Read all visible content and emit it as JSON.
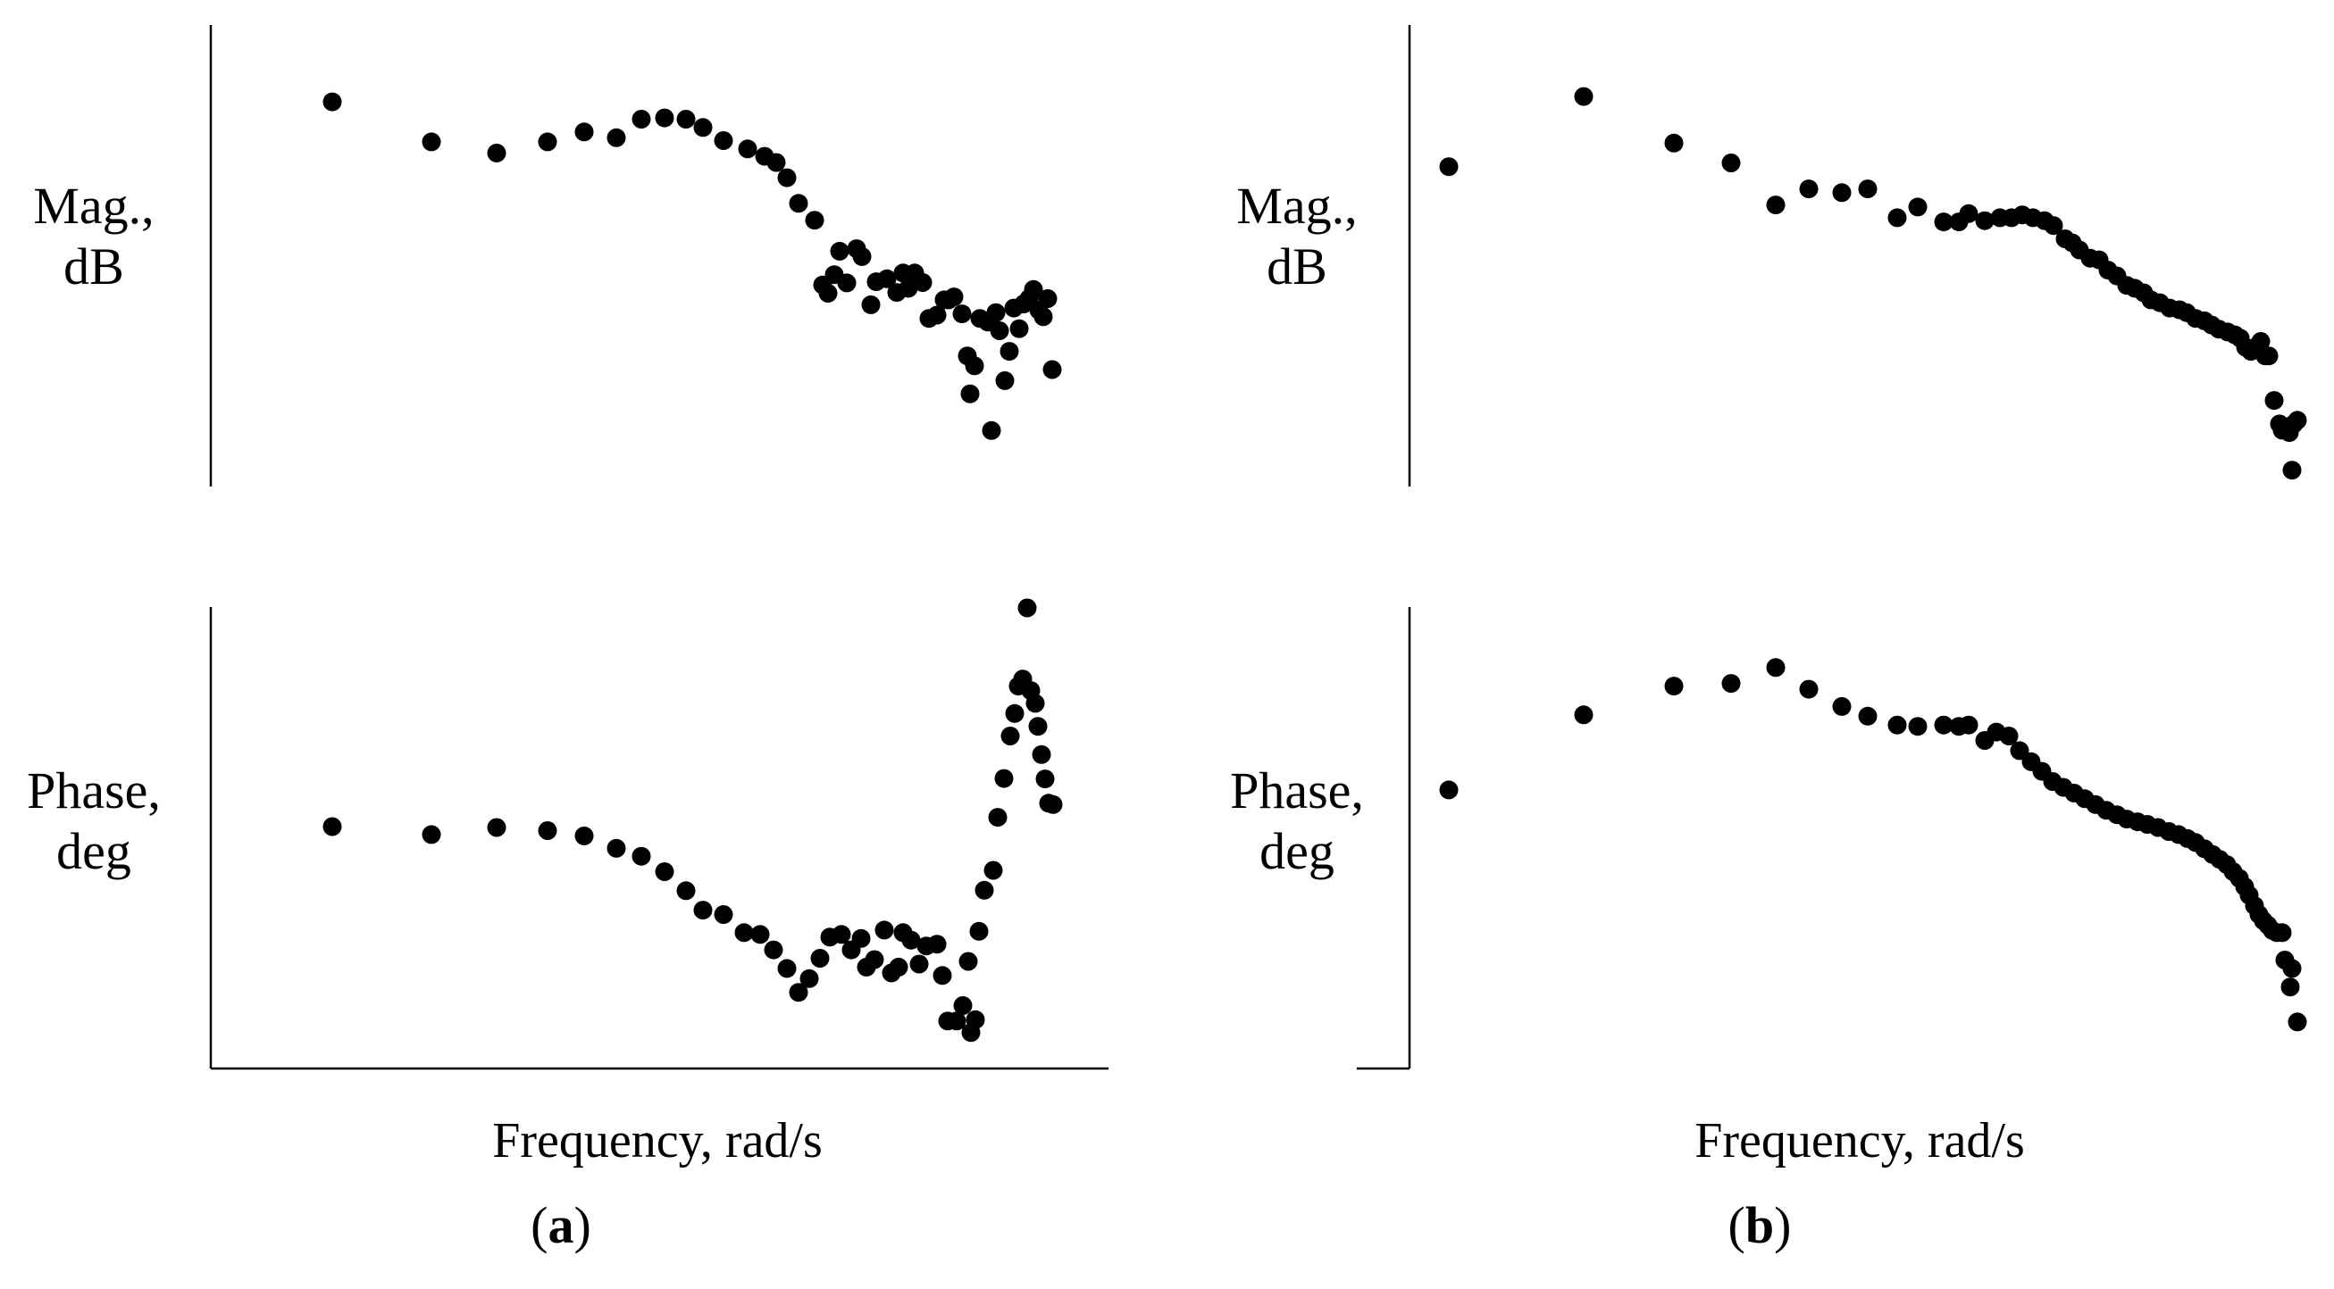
{
  "chart_data": [
    {
      "panel": "(a)",
      "panel_letter": "a",
      "type": "scatter",
      "plots": [
        {
          "ylabel": [
            "Mag.,",
            "dB"
          ],
          "xlabel": "",
          "xlim": [
            0,
            100
          ],
          "ylim": [
            0,
            100
          ],
          "grid": false,
          "axes": "left-only",
          "points": [
            [
              13.6,
              91.1
            ],
            [
              24.7,
              81.4
            ],
            [
              32.0,
              78.7
            ],
            [
              37.7,
              81.4
            ],
            [
              41.8,
              83.8
            ],
            [
              45.4,
              82.4
            ],
            [
              48.2,
              86.9
            ],
            [
              50.8,
              87.2
            ],
            [
              53.2,
              86.9
            ],
            [
              55.1,
              84.9
            ],
            [
              57.4,
              81.7
            ],
            [
              60.1,
              79.7
            ],
            [
              62.0,
              77.9
            ],
            [
              63.3,
              76.4
            ],
            [
              64.5,
              72.7
            ],
            [
              65.8,
              66.5
            ],
            [
              67.6,
              62.4
            ],
            [
              68.5,
              46.7
            ],
            [
              69.1,
              44.7
            ],
            [
              69.8,
              49.2
            ],
            [
              70.4,
              54.9
            ],
            [
              71.2,
              47.2
            ],
            [
              72.3,
              55.5
            ],
            [
              72.9,
              53.6
            ],
            [
              73.9,
              41.9
            ],
            [
              74.5,
              47.5
            ],
            [
              75.7,
              48.2
            ],
            [
              76.8,
              44.9
            ],
            [
              77.5,
              49.6
            ],
            [
              78.1,
              45.9
            ],
            [
              78.8,
              49.6
            ],
            [
              79.7,
              47.3
            ],
            [
              80.4,
              38.6
            ],
            [
              81.3,
              39.4
            ],
            [
              82.1,
              43.1
            ],
            [
              82.6,
              43.1
            ],
            [
              83.2,
              43.8
            ],
            [
              84.1,
              39.7
            ],
            [
              84.7,
              29.5
            ],
            [
              85.0,
              20.3
            ],
            [
              85.5,
              27.1
            ],
            [
              86.1,
              38.6
            ],
            [
              87.0,
              37.7
            ],
            [
              87.4,
              11.4
            ],
            [
              87.9,
              40.0
            ],
            [
              88.3,
              35.6
            ],
            [
              88.9,
              23.5
            ],
            [
              89.4,
              30.6
            ],
            [
              89.9,
              41.1
            ],
            [
              90.5,
              36.1
            ],
            [
              91.0,
              42.1
            ],
            [
              91.6,
              43.4
            ],
            [
              92.1,
              45.6
            ],
            [
              92.7,
              40.6
            ],
            [
              93.2,
              39.0
            ],
            [
              93.7,
              43.4
            ],
            [
              94.2,
              26.2
            ]
          ]
        },
        {
          "ylabel": [
            "Phase,",
            "deg"
          ],
          "xlabel": "Frequency, rad/s",
          "xlim": [
            0,
            100
          ],
          "ylim": [
            0,
            100
          ],
          "grid": false,
          "axes": "left-and-bottom",
          "points": [
            [
              13.6,
              50.5
            ],
            [
              24.7,
              48.7
            ],
            [
              32.0,
              50.3
            ],
            [
              37.7,
              49.6
            ],
            [
              41.8,
              48.4
            ],
            [
              45.4,
              45.6
            ],
            [
              48.2,
              43.8
            ],
            [
              50.8,
              40.3
            ],
            [
              53.2,
              36.0
            ],
            [
              55.1,
              31.6
            ],
            [
              57.4,
              30.6
            ],
            [
              59.7,
              26.5
            ],
            [
              61.5,
              26.1
            ],
            [
              63.0,
              22.6
            ],
            [
              64.5,
              18.4
            ],
            [
              65.8,
              13.0
            ],
            [
              67.0,
              16.1
            ],
            [
              68.2,
              20.7
            ],
            [
              69.3,
              25.5
            ],
            [
              70.6,
              26.1
            ],
            [
              71.7,
              22.6
            ],
            [
              72.8,
              25.2
            ],
            [
              73.4,
              18.7
            ],
            [
              74.3,
              20.4
            ],
            [
              75.4,
              27.1
            ],
            [
              76.2,
              17.4
            ],
            [
              77.0,
              18.7
            ],
            [
              77.5,
              26.5
            ],
            [
              78.4,
              24.8
            ],
            [
              79.3,
              19.4
            ],
            [
              80.1,
              23.5
            ],
            [
              81.3,
              23.9
            ],
            [
              81.9,
              16.8
            ],
            [
              82.5,
              6.5
            ],
            [
              83.5,
              6.5
            ],
            [
              84.2,
              10.0
            ],
            [
              84.8,
              20.0
            ],
            [
              85.1,
              3.9
            ],
            [
              85.6,
              6.8
            ],
            [
              86.0,
              26.8
            ],
            [
              86.6,
              36.1
            ],
            [
              87.6,
              40.6
            ],
            [
              88.1,
              52.6
            ],
            [
              88.8,
              61.4
            ],
            [
              89.5,
              71.0
            ],
            [
              90.0,
              76.1
            ],
            [
              90.4,
              82.3
            ],
            [
              90.9,
              83.9
            ],
            [
              91.4,
              100.0
            ],
            [
              91.8,
              81.3
            ],
            [
              92.3,
              78.4
            ],
            [
              92.6,
              73.2
            ],
            [
              93.0,
              66.8
            ],
            [
              93.4,
              61.3
            ],
            [
              93.8,
              55.8
            ],
            [
              94.3,
              55.5
            ]
          ]
        }
      ]
    },
    {
      "panel": "(b)",
      "panel_letter": "b",
      "type": "scatter",
      "plots": [
        {
          "ylabel": [
            "Mag.,",
            "dB"
          ],
          "xlabel": "",
          "xlim": [
            0,
            100
          ],
          "ylim": [
            0,
            100
          ],
          "grid": false,
          "axes": "left-only",
          "points": [
            [
              4.4,
              75.4
            ],
            [
              19.5,
              92.4
            ],
            [
              29.6,
              81.1
            ],
            [
              36.0,
              76.3
            ],
            [
              41.0,
              66.1
            ],
            [
              44.7,
              70.0
            ],
            [
              48.4,
              69.1
            ],
            [
              51.3,
              70.0
            ],
            [
              54.6,
              63.0
            ],
            [
              56.9,
              65.6
            ],
            [
              59.8,
              62.0
            ],
            [
              61.5,
              62.0
            ],
            [
              62.6,
              64.0
            ],
            [
              64.4,
              62.3
            ],
            [
              66.1,
              63.0
            ],
            [
              67.4,
              63.0
            ],
            [
              68.6,
              63.7
            ],
            [
              69.8,
              63.0
            ],
            [
              71.1,
              62.3
            ],
            [
              72.1,
              61.1
            ],
            [
              73.4,
              57.9
            ],
            [
              74.2,
              56.9
            ],
            [
              75.0,
              55.2
            ],
            [
              76.2,
              53.2
            ],
            [
              77.2,
              52.8
            ],
            [
              78.2,
              50.3
            ],
            [
              79.2,
              48.9
            ],
            [
              80.3,
              46.6
            ],
            [
              81.2,
              45.9
            ],
            [
              82.2,
              44.8
            ],
            [
              83.0,
              43.1
            ],
            [
              84.0,
              42.4
            ],
            [
              85.1,
              41.1
            ],
            [
              86.2,
              40.7
            ],
            [
              87.0,
              40.0
            ],
            [
              88.0,
              38.6
            ],
            [
              89.0,
              38.0
            ],
            [
              89.8,
              37.0
            ],
            [
              90.6,
              36.0
            ],
            [
              91.6,
              35.3
            ],
            [
              92.4,
              34.6
            ],
            [
              93.0,
              33.8
            ],
            [
              93.6,
              31.6
            ],
            [
              94.2,
              30.6
            ],
            [
              94.7,
              31.6
            ],
            [
              95.3,
              33.0
            ],
            [
              95.8,
              29.5
            ],
            [
              96.2,
              29.5
            ],
            [
              96.8,
              18.7
            ],
            [
              97.4,
              13.0
            ],
            [
              97.7,
              11.5
            ],
            [
              98.2,
              11.9
            ],
            [
              98.5,
              10.9
            ],
            [
              98.8,
              1.8
            ],
            [
              99.0,
              13.0
            ],
            [
              99.4,
              13.9
            ]
          ]
        },
        {
          "ylabel": [
            "Phase,",
            "deg"
          ],
          "xlabel": "Frequency, rad/s",
          "xlim": [
            0,
            100
          ],
          "ylim": [
            0,
            100
          ],
          "grid": false,
          "axes": "left-and-bottom",
          "points": [
            [
              4.4,
              58.8
            ],
            [
              19.5,
              75.8
            ],
            [
              29.6,
              82.3
            ],
            [
              36.0,
              82.9
            ],
            [
              41.0,
              86.5
            ],
            [
              44.7,
              81.6
            ],
            [
              48.4,
              77.7
            ],
            [
              51.3,
              75.5
            ],
            [
              54.6,
              73.5
            ],
            [
              56.9,
              73.2
            ],
            [
              59.8,
              73.5
            ],
            [
              61.5,
              73.2
            ],
            [
              62.6,
              73.5
            ],
            [
              64.4,
              70.0
            ],
            [
              65.7,
              71.9
            ],
            [
              67.1,
              71.0
            ],
            [
              68.3,
              67.7
            ],
            [
              69.6,
              65.2
            ],
            [
              70.8,
              63.0
            ],
            [
              72.0,
              60.7
            ],
            [
              73.2,
              59.4
            ],
            [
              74.4,
              58.1
            ],
            [
              75.6,
              56.8
            ],
            [
              76.8,
              55.5
            ],
            [
              78.0,
              54.2
            ],
            [
              79.2,
              53.2
            ],
            [
              80.3,
              52.2
            ],
            [
              81.5,
              51.6
            ],
            [
              82.6,
              51.0
            ],
            [
              83.8,
              50.3
            ],
            [
              85.0,
              49.4
            ],
            [
              86.1,
              48.7
            ],
            [
              87.1,
              47.8
            ],
            [
              88.0,
              46.9
            ],
            [
              89.0,
              45.5
            ],
            [
              89.9,
              44.2
            ],
            [
              90.7,
              43.1
            ],
            [
              91.5,
              41.9
            ],
            [
              92.2,
              40.3
            ],
            [
              92.9,
              38.8
            ],
            [
              93.5,
              36.9
            ],
            [
              94.0,
              35.0
            ],
            [
              94.6,
              32.6
            ],
            [
              95.1,
              30.6
            ],
            [
              95.6,
              29.2
            ],
            [
              96.1,
              28.2
            ],
            [
              96.6,
              27.0
            ],
            [
              97.1,
              26.5
            ],
            [
              97.7,
              26.5
            ],
            [
              98.0,
              20.3
            ],
            [
              98.6,
              14.2
            ],
            [
              98.8,
              18.4
            ],
            [
              99.4,
              6.3
            ]
          ]
        }
      ]
    }
  ]
}
